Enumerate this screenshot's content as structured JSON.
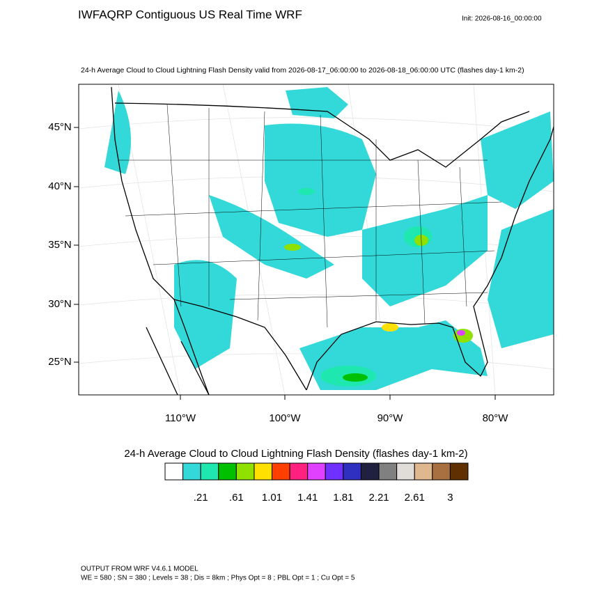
{
  "header": {
    "title": "IWFAQRP Contiguous US Real Time WRF",
    "init": "Init: 2026-08-16_00:00:00"
  },
  "map": {
    "subtitle": "24-h Average Cloud to Cloud Lightning Flash Density valid from 2026-08-17_06:00:00 to 2026-08-18_06:00:00 UTC   (flashes day-1 km-2)",
    "lat_labels": [
      "45°N",
      "40°N",
      "35°N",
      "30°N",
      "25°N"
    ],
    "lon_labels": [
      "110°W",
      "100°W",
      "90°W",
      "80°W"
    ]
  },
  "colorbar": {
    "title": "24-h Average Cloud to Cloud Lightning Flash Density  (flashes day-1 km-2)",
    "colors": [
      "#ffffff",
      "#33d9d9",
      "#1ee8b0",
      "#00c000",
      "#90e000",
      "#ffe000",
      "#ff4000",
      "#ff2080",
      "#e040ff",
      "#7030ff",
      "#3030c0",
      "#202040",
      "#808080",
      "#e0ddd8",
      "#e0b890",
      "#a87040",
      "#603000"
    ],
    "labels": [
      ".21",
      ".61",
      "1.01",
      "1.41",
      "1.81",
      "2.21",
      "2.61",
      "3"
    ]
  },
  "footer": {
    "line1": "OUTPUT FROM WRF V4.6.1 MODEL",
    "line2": "WE = 580 ; SN = 380 ; Levels = 38 ; Dis = 8km ; Phys Opt = 8 ; PBL Opt = 1 ; Cu Opt = 5"
  }
}
